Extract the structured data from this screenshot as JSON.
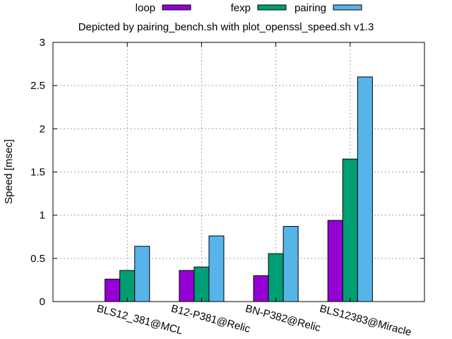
{
  "chart_data": {
    "type": "bar",
    "title": "Depicted by pairing_bench.sh with plot_openssl_speed.sh v1.3",
    "xlabel": "",
    "ylabel": "Speed [msec]",
    "ylim": [
      0,
      3
    ],
    "yticks": [
      "0",
      "0.5",
      "1",
      "1.5",
      "2",
      "2.5",
      "3"
    ],
    "ytick_values": [
      0,
      0.5,
      1,
      1.5,
      2,
      2.5,
      3
    ],
    "grid": true,
    "legend_position": "top",
    "categories": [
      "BLS12_381@MCL",
      "B12-P381@Relic",
      "BN-P382@Relic",
      "BLS12383@Miracle"
    ],
    "series": [
      {
        "name": "loop",
        "color": "#9400d3",
        "values": [
          0.26,
          0.36,
          0.3,
          0.94
        ]
      },
      {
        "name": "fexp",
        "color": "#009e73",
        "values": [
          0.36,
          0.4,
          0.555,
          1.65
        ]
      },
      {
        "name": "pairing",
        "color": "#56b4e9",
        "values": [
          0.64,
          0.76,
          0.87,
          2.6
        ]
      }
    ]
  }
}
